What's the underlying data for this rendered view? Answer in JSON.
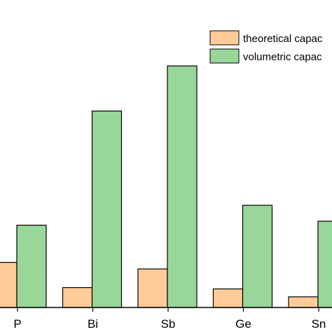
{
  "chart_data": {
    "type": "bar",
    "title": "",
    "xlabel": "",
    "ylabel": "",
    "categories": [
      "P",
      "Bi",
      "Sb",
      "Ge",
      "Sn"
    ],
    "series": [
      {
        "name": "theoretical capac",
        "color": "#FFCC99",
        "values": [
          68,
          30,
          58,
          28,
          16
        ]
      },
      {
        "name": "volumetric capac",
        "color": "#99D699",
        "values": [
          124,
          296,
          364,
          154,
          130
        ]
      }
    ],
    "ylim": [
      0,
      400
    ],
    "legend_position": "top-right",
    "grid": false
  }
}
